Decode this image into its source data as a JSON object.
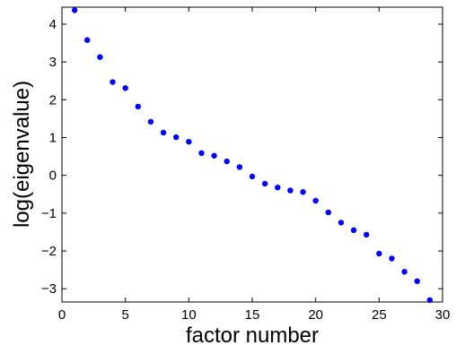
{
  "chart_data": {
    "type": "scatter",
    "title": "",
    "xlabel": "factor number",
    "ylabel": "log(eigenvalue)",
    "xlim": [
      0,
      30
    ],
    "ylim": [
      -3.35,
      4.45
    ],
    "xticks": [
      0,
      5,
      10,
      15,
      20,
      25,
      30
    ],
    "yticks": [
      -3,
      -2,
      -1,
      0,
      1,
      2,
      3,
      4
    ],
    "grid": false,
    "marker_color": "#0000ff",
    "series": [
      {
        "x": [
          1,
          2,
          3,
          4,
          5,
          6,
          7,
          8,
          9,
          10,
          11,
          12,
          13,
          14,
          15,
          16,
          17,
          18,
          19,
          20,
          21,
          22,
          23,
          24,
          25,
          26,
          27,
          28,
          29
        ],
        "values": [
          4.37,
          3.58,
          3.13,
          2.47,
          2.31,
          1.82,
          1.42,
          1.13,
          1.01,
          0.89,
          0.59,
          0.52,
          0.37,
          0.22,
          -0.03,
          -0.22,
          -0.32,
          -0.4,
          -0.44,
          -0.67,
          -0.98,
          -1.25,
          -1.45,
          -1.57,
          -2.07,
          -2.2,
          -2.55,
          -2.8,
          -3.3
        ]
      }
    ]
  }
}
